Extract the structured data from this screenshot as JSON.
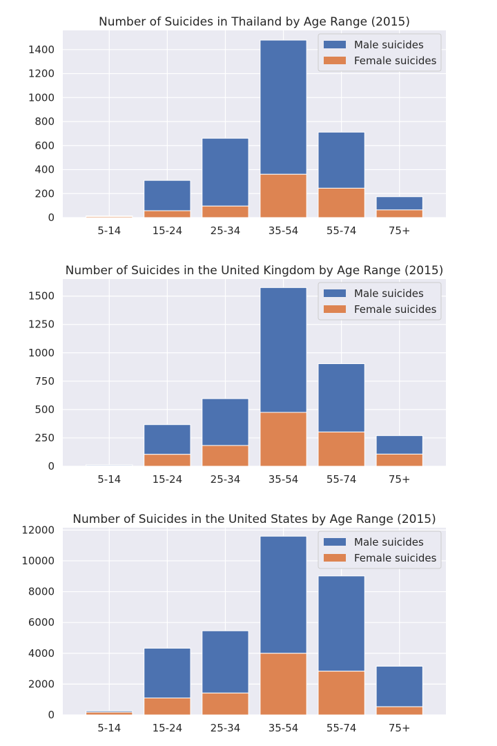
{
  "chart_data": [
    {
      "type": "bar",
      "title": "Number of Suicides in Thailand by Age Range (2015)",
      "categories": [
        "5-14",
        "15-24",
        "25-34",
        "35-54",
        "55-74",
        "75+"
      ],
      "stacked": true,
      "series": [
        {
          "name": "Male suicides",
          "color": "#4c72b0",
          "values": [
            5,
            253,
            565,
            1118,
            467,
            110
          ]
        },
        {
          "name": "Female suicides",
          "color": "#dd8452",
          "values": [
            9,
            57,
            96,
            361,
            245,
            64
          ]
        }
      ],
      "ylim": [
        0,
        1560
      ],
      "yticks": [
        0,
        200,
        400,
        600,
        800,
        1000,
        1200,
        1400
      ],
      "grid": true,
      "legend": "top-right"
    },
    {
      "type": "bar",
      "title": "Number of Suicides in the United Kingdom by Age Range (2015)",
      "categories": [
        "5-14",
        "15-24",
        "25-34",
        "35-54",
        "55-74",
        "75+"
      ],
      "stacked": true,
      "series": [
        {
          "name": "Male suicides",
          "color": "#4c72b0",
          "values": [
            8,
            262,
            413,
            1100,
            602,
            163
          ]
        },
        {
          "name": "Female suicides",
          "color": "#dd8452",
          "values": [
            5,
            105,
            183,
            475,
            302,
            107
          ]
        }
      ],
      "ylim": [
        0,
        1650
      ],
      "yticks": [
        0,
        250,
        500,
        750,
        1000,
        1250,
        1500
      ],
      "grid": true,
      "legend": "top-right"
    },
    {
      "type": "bar",
      "title": "Number of Suicides in the United States by Age Range (2015)",
      "categories": [
        "5-14",
        "15-24",
        "25-34",
        "35-54",
        "55-74",
        "75+"
      ],
      "stacked": true,
      "series": [
        {
          "name": "Male suicides",
          "color": "#4c72b0",
          "values": [
            83,
            3230,
            4040,
            7600,
            6180,
            2630
          ]
        },
        {
          "name": "Female suicides",
          "color": "#dd8452",
          "values": [
            175,
            1100,
            1420,
            4000,
            2840,
            530
          ]
        }
      ],
      "ylim": [
        0,
        12150
      ],
      "yticks": [
        0,
        2000,
        4000,
        6000,
        8000,
        10000,
        12000
      ],
      "grid": true,
      "legend": "top-right"
    }
  ]
}
